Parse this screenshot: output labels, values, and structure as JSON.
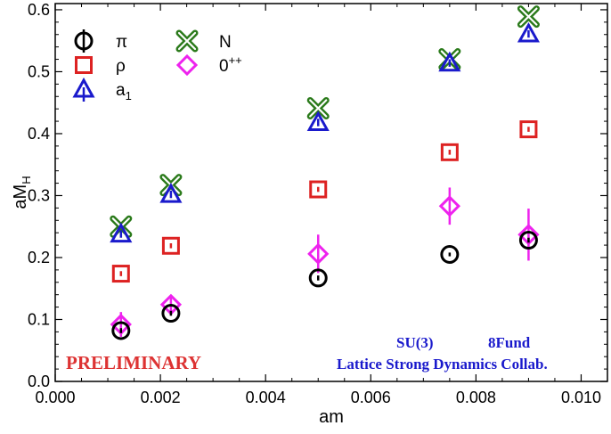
{
  "chart_data": {
    "type": "scatter",
    "xlabel": "am",
    "ylabel_main": "aM",
    "ylabel_sub": "H",
    "xlim": [
      0.0,
      0.0105
    ],
    "ylim": [
      0.0,
      0.61
    ],
    "x_ticks": [
      "0.000",
      "0.002",
      "0.004",
      "0.006",
      "0.008",
      "0.010"
    ],
    "x_tick_values": [
      0.0,
      0.002,
      0.004,
      0.006,
      0.008,
      0.01
    ],
    "y_ticks": [
      "0.0",
      "0.1",
      "0.2",
      "0.3",
      "0.4",
      "0.5",
      "0.6"
    ],
    "y_tick_values": [
      0.0,
      0.1,
      0.2,
      0.3,
      0.4,
      0.5,
      0.6
    ],
    "grid": false,
    "legend_placement": "top-left",
    "series": [
      {
        "name": "π",
        "marker": "circle",
        "color": "#000000",
        "x": [
          0.00125,
          0.0022,
          0.005,
          0.0075,
          0.009
        ],
        "y": [
          0.082,
          0.11,
          0.167,
          0.205,
          0.228
        ],
        "err": [
          0.004,
          0.004,
          0.004,
          0.003,
          0.004
        ]
      },
      {
        "name": "ρ",
        "marker": "square",
        "color": "#dd2222",
        "x": [
          0.00125,
          0.0022,
          0.005,
          0.0075,
          0.009
        ],
        "y": [
          0.174,
          0.219,
          0.31,
          0.37,
          0.407
        ],
        "err": [
          0.004,
          0.004,
          0.004,
          0.004,
          0.004
        ]
      },
      {
        "name": "a1",
        "marker": "triangle",
        "color": "#1a1acc",
        "x": [
          0.00125,
          0.0022,
          0.005,
          0.0075,
          0.009
        ],
        "y": [
          0.238,
          0.302,
          0.418,
          0.514,
          0.561
        ],
        "err": [
          0.006,
          0.006,
          0.006,
          0.006,
          0.006
        ]
      },
      {
        "name": "N",
        "marker": "cross",
        "color": "#2a7a1a",
        "x": [
          0.00125,
          0.0022,
          0.005,
          0.0075,
          0.009
        ],
        "y": [
          0.25,
          0.317,
          0.441,
          0.52,
          0.589
        ],
        "err": [
          0.005,
          0.005,
          0.005,
          0.005,
          0.005
        ]
      },
      {
        "name": "0++",
        "marker": "diamond",
        "color": "#ee22ee",
        "x": [
          0.00125,
          0.0022,
          0.005,
          0.0075,
          0.009
        ],
        "y": [
          0.092,
          0.124,
          0.206,
          0.283,
          0.237
        ],
        "err": [
          0.02,
          0.013,
          0.031,
          0.03,
          0.042
        ]
      }
    ],
    "legend": [
      {
        "label": "π",
        "marker": "circle"
      },
      {
        "label": "N",
        "marker": "cross"
      },
      {
        "label": "ρ",
        "marker": "square"
      },
      {
        "label": "0",
        "sup": "++",
        "marker": "diamond"
      },
      {
        "label": "a",
        "sub": "1",
        "marker": "triangle"
      }
    ],
    "annotations": {
      "preliminary": "PRELIMINARY",
      "preliminary_color": "#dd3333",
      "collab_line1a": "SU(3)",
      "collab_line1b": "8Fund",
      "collab_line2": "Lattice Strong Dynamics Collab.",
      "collab_color": "#1a1acc"
    }
  }
}
